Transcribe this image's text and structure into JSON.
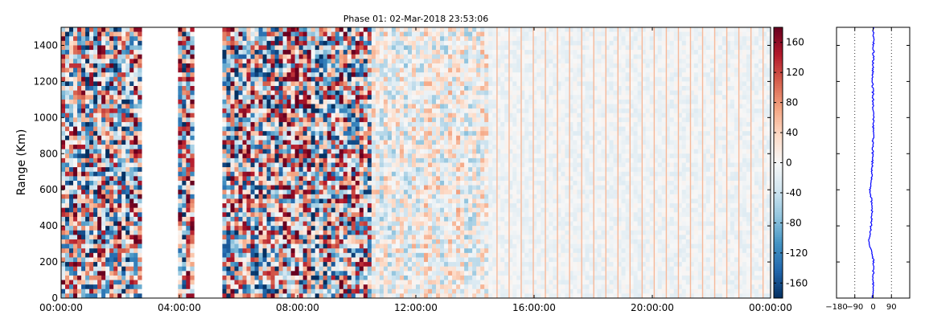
{
  "chart_data": [
    {
      "type": "heatmap",
      "title": "Phase 01: 02-Mar-2018 23:53:06",
      "ylabel": "Range (Km)",
      "xlabel": "",
      "x_ticks": [
        "00:00:00",
        "04:00:00",
        "08:00:00",
        "12:00:00",
        "16:00:00",
        "20:00:00",
        "00:00:00"
      ],
      "x_range_hours": [
        0,
        24
      ],
      "y_ticks": [
        0,
        200,
        400,
        600,
        800,
        1000,
        1200,
        1400
      ],
      "ylim": [
        0,
        1500
      ],
      "data_gaps_hours": [
        [
          2.7,
          3.5
        ],
        [
          3.6,
          4.0
        ],
        [
          4.5,
          5.5
        ]
      ],
      "regions": [
        {
          "from_hours": 0,
          "to_hours": 10.5,
          "description": "noisy",
          "amplitude_deg": 180
        },
        {
          "from_hours": 10.5,
          "to_hours": 14.5,
          "description": "mixed",
          "amplitude_deg": 60
        },
        {
          "from_hours": 14.5,
          "to_hours": 24,
          "description": "smooth",
          "amplitude_deg": 15
        }
      ],
      "colormap": "RdBu_r",
      "colormap_stops": [
        "#053061",
        "#2166ac",
        "#4393c3",
        "#92c5de",
        "#d1e5f0",
        "#f7f7f7",
        "#fddbc7",
        "#f4a582",
        "#d6604d",
        "#b2182b",
        "#67001f"
      ],
      "grid": false
    },
    {
      "type": "colorbar",
      "ticks": [
        -160,
        -120,
        -80,
        -40,
        0,
        40,
        80,
        120,
        160
      ],
      "range": [
        -180,
        180
      ]
    },
    {
      "type": "line",
      "x_ticks": [
        -180,
        -90,
        0,
        90
      ],
      "xlim": [
        -180,
        180
      ],
      "ylim": [
        0,
        1500
      ],
      "reference_lines_x": [
        -90,
        90
      ],
      "series_color": "#0000ff",
      "profile": [
        {
          "range": 0,
          "value": -2
        },
        {
          "range": 100,
          "value": 0
        },
        {
          "range": 200,
          "value": 3
        },
        {
          "range": 250,
          "value": -5
        },
        {
          "range": 280,
          "value": -15
        },
        {
          "range": 320,
          "value": -20
        },
        {
          "range": 360,
          "value": -15
        },
        {
          "range": 420,
          "value": -8
        },
        {
          "range": 500,
          "value": -5
        },
        {
          "range": 560,
          "value": -10
        },
        {
          "range": 600,
          "value": -15
        },
        {
          "range": 640,
          "value": -10
        },
        {
          "range": 700,
          "value": -6
        },
        {
          "range": 800,
          "value": -2
        },
        {
          "range": 900,
          "value": 0
        },
        {
          "range": 1000,
          "value": 2
        },
        {
          "range": 1100,
          "value": 0
        },
        {
          "range": 1200,
          "value": -3
        },
        {
          "range": 1300,
          "value": 0
        },
        {
          "range": 1400,
          "value": 2
        },
        {
          "range": 1500,
          "value": 0
        }
      ]
    }
  ]
}
